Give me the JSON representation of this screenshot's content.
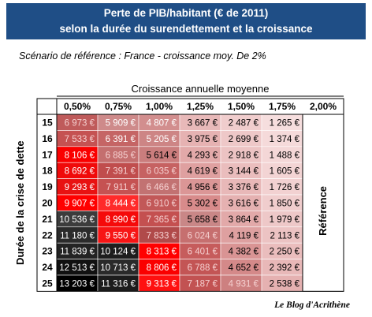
{
  "title_line1": "Perte de PIB/habitant (€ de 2011)",
  "title_line2": "selon la durée du surendettement et la croissance",
  "subtitle": "Scénario de référence : France - croissance moy. De 2%",
  "credit": "Le Blog d'Acrithène",
  "chart_data": {
    "type": "heatmap",
    "xlabel": "Croissance annuelle moyenne",
    "ylabel": "Durée de la crise de dette",
    "x_categories": [
      "0,50%",
      "0,75%",
      "1,00%",
      "1,25%",
      "1,50%",
      "1,75%",
      "2,00%"
    ],
    "y_categories": [
      "15",
      "16",
      "17",
      "18",
      "19",
      "20",
      "21",
      "22",
      "23",
      "24",
      "25"
    ],
    "reference_label": "Référence",
    "unit": "€",
    "values": [
      [
        6973,
        5909,
        4807,
        3667,
        2487,
        1265
      ],
      [
        7533,
        6391,
        5205,
        3975,
        2699,
        1374
      ],
      [
        8106,
        6885,
        5614,
        4293,
        2918,
        1488
      ],
      [
        8692,
        7391,
        6035,
        4619,
        3144,
        1605
      ],
      [
        9293,
        7911,
        6466,
        4956,
        3376,
        1726
      ],
      [
        9907,
        8444,
        6910,
        5302,
        3616,
        1850
      ],
      [
        10536,
        8990,
        7365,
        5658,
        3864,
        1979
      ],
      [
        11180,
        9550,
        7833,
        6024,
        4119,
        2113
      ],
      [
        11839,
        10124,
        8313,
        6401,
        4382,
        2250
      ],
      [
        12513,
        10713,
        8806,
        6788,
        4652,
        2392
      ],
      [
        13203,
        11316,
        9313,
        7187,
        4931,
        2538
      ]
    ],
    "value_labels": [
      [
        "6 973 €",
        "5 909 €",
        "4 807 €",
        "3 667 €",
        "2 487 €",
        "1 265 €"
      ],
      [
        "7 533 €",
        "6 391 €",
        "5 205 €",
        "3 975 €",
        "2 699 €",
        "1 374 €"
      ],
      [
        "8 106 €",
        "6 885 €",
        "5 614 €",
        "4 293 €",
        "2 918 €",
        "1 488 €"
      ],
      [
        "8 692 €",
        "7 391 €",
        "6 035 €",
        "4 619 €",
        "3 144 €",
        "1 605 €"
      ],
      [
        "9 293 €",
        "7 911 €",
        "6 466 €",
        "4 956 €",
        "3 376 €",
        "1 726 €"
      ],
      [
        "9 907 €",
        "8 444 €",
        "6 910 €",
        "5 302 €",
        "3 616 €",
        "1 850 €"
      ],
      [
        "10 536 €",
        "8 990 €",
        "7 365 €",
        "5 658 €",
        "3 864 €",
        "1 979 €"
      ],
      [
        "11 180 €",
        "9 550 €",
        "7 833 €",
        "6 024 €",
        "4 119 €",
        "2 113 €"
      ],
      [
        "11 839 €",
        "10 124 €",
        "8 313 €",
        "6 401 €",
        "4 382 €",
        "2 250 €"
      ],
      [
        "12 513 €",
        "10 713 €",
        "8 806 €",
        "6 788 €",
        "4 652 €",
        "2 392 €"
      ],
      [
        "13 203 €",
        "11 316 €",
        "9 313 €",
        "7 187 €",
        "4 931 €",
        "2 538 €"
      ]
    ],
    "cell_colors": [
      [
        "#bf5b5b",
        "#ce8a8a",
        "#d28e8e",
        "#e8b9b9",
        "#f0cdcd",
        "#f6dede"
      ],
      [
        "#c55252",
        "#c56565",
        "#cd8585",
        "#e6b2b2",
        "#eec8c8",
        "#f5dada"
      ],
      [
        "#fa0000",
        "#c46f6f",
        "#ca7d7d",
        "#e2a9a9",
        "#ecc3c3",
        "#f4d7d7"
      ],
      [
        "#f00a0a",
        "#c04d4d",
        "#c66262",
        "#dfa0a0",
        "#eabdbd",
        "#f3d4d4"
      ],
      [
        "#e81212",
        "#c55252",
        "#c27272",
        "#db9696",
        "#e8b8b8",
        "#f2d1d1"
      ],
      [
        "#ff0000",
        "#ff2a2a",
        "#c25858",
        "#d88b8b",
        "#e5b1b1",
        "#f0cdcd"
      ],
      [
        "#3c3c3c",
        "#f50a0a",
        "#c45050",
        "#c98787",
        "#e2a9a9",
        "#eec8c8"
      ],
      [
        "#2b2b2b",
        "#f71515",
        "#b04a4a",
        "#c66f6f",
        "#dea0a0",
        "#ecc3c3"
      ],
      [
        "#232323",
        "#1e1e1e",
        "#ff0000",
        "#c65c5c",
        "#d99494",
        "#eabdbd"
      ],
      [
        "#111111",
        "#2a2a2a",
        "#fa0000",
        "#c35555",
        "#d48989",
        "#e8b8b8"
      ],
      [
        "#000000",
        "#1c1c1c",
        "#ff1010",
        "#c25252",
        "#cd8080",
        "#e5b1b1"
      ]
    ],
    "text_colors": [
      [
        "#f5d0d0",
        "#ffffff",
        "#ffffff",
        "#000000",
        "#000000",
        "#000000"
      ],
      [
        "#f5d0d0",
        "#ffffff",
        "#ffffff",
        "#000000",
        "#000000",
        "#000000"
      ],
      [
        "#ffffff",
        "#f5d0d0",
        "#000000",
        "#000000",
        "#000000",
        "#000000"
      ],
      [
        "#ffffff",
        "#f5d0d0",
        "#f5d0d0",
        "#000000",
        "#000000",
        "#000000"
      ],
      [
        "#ffffff",
        "#f5d0d0",
        "#f5d0d0",
        "#000000",
        "#000000",
        "#000000"
      ],
      [
        "#ffffff",
        "#ffffff",
        "#f5d0d0",
        "#000000",
        "#000000",
        "#000000"
      ],
      [
        "#ffffff",
        "#ffffff",
        "#f5d0d0",
        "#000000",
        "#000000",
        "#000000"
      ],
      [
        "#ffffff",
        "#ffffff",
        "#f5d0d0",
        "#f5d0d0",
        "#000000",
        "#000000"
      ],
      [
        "#ffffff",
        "#ffffff",
        "#ffffff",
        "#f5d0d0",
        "#000000",
        "#000000"
      ],
      [
        "#ffffff",
        "#ffffff",
        "#ffffff",
        "#f5d0d0",
        "#000000",
        "#000000"
      ],
      [
        "#ffffff",
        "#ffffff",
        "#ffffff",
        "#f5d0d0",
        "#f5d0d0",
        "#000000"
      ]
    ]
  }
}
